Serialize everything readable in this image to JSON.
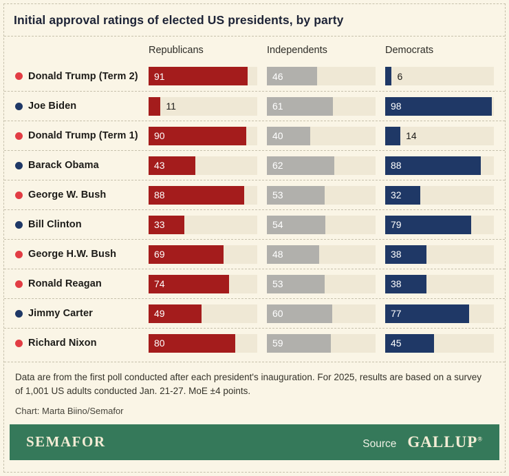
{
  "title": "Initial approval ratings of elected US presidents, by party",
  "chart_data": {
    "type": "bar",
    "title": "Initial approval ratings of elected US presidents, by party",
    "orientation": "horizontal",
    "xlim": [
      0,
      100
    ],
    "categories": [
      "Donald Trump (Term 2)",
      "Joe Biden",
      "Donald Trump (Term 1)",
      "Barack Obama",
      "George W. Bush",
      "Bill Clinton",
      "George H.W. Bush",
      "Ronald Reagan",
      "Jimmy Carter",
      "Richard Nixon"
    ],
    "category_parties": [
      "republican",
      "democrat",
      "republican",
      "democrat",
      "republican",
      "democrat",
      "republican",
      "republican",
      "democrat",
      "republican"
    ],
    "series": [
      {
        "name": "Republicans",
        "values": [
          91,
          11,
          90,
          43,
          88,
          33,
          69,
          74,
          49,
          80
        ]
      },
      {
        "name": "Independents",
        "values": [
          46,
          61,
          40,
          62,
          53,
          54,
          48,
          53,
          60,
          59
        ]
      },
      {
        "name": "Democrats",
        "values": [
          6,
          98,
          14,
          88,
          32,
          79,
          38,
          38,
          77,
          45
        ]
      }
    ]
  },
  "colors": {
    "republican_bar": "#a41c1c",
    "independent_bar": "#b1b0ac",
    "democrat_bar": "#1f3866",
    "republican_dot": "#e23d44",
    "democrat_dot": "#1f3866",
    "background": "#faf5e6",
    "track": "#efe8d5",
    "footer_green": "#35795a"
  },
  "notes": {
    "text": "Data are from the first poll conducted after each president's inauguration. For 2025, results are based on a survey of 1,001 US adults conducted Jan. 21-27. MoE ±4 points.",
    "credit": "Chart: Marta Biino/Semafor"
  },
  "footer": {
    "brand": "SEMAFOR",
    "source_label": "Source",
    "source_name": "GALLUP",
    "registered": "®"
  }
}
